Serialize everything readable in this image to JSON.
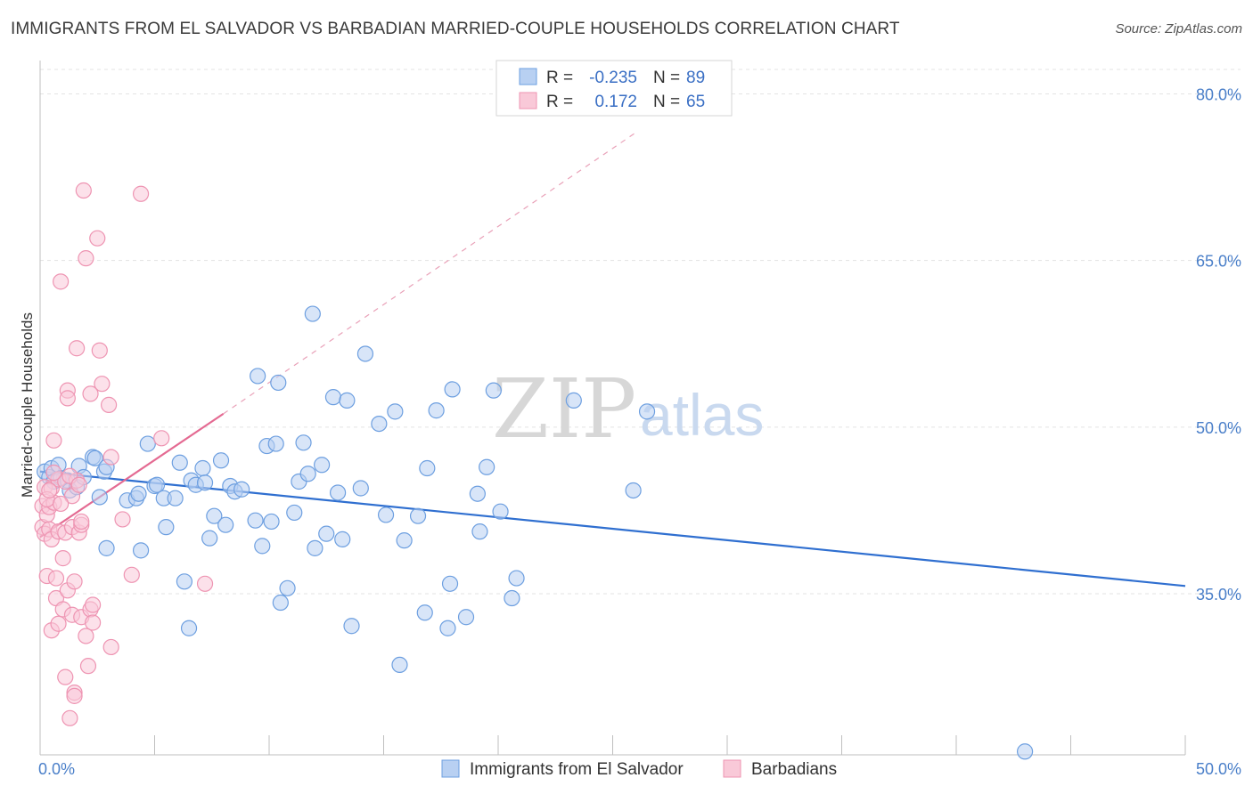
{
  "header": {
    "title": "IMMIGRANTS FROM EL SALVADOR VS BARBADIAN MARRIED-COUPLE HOUSEHOLDS CORRELATION CHART",
    "source": "Source: ZipAtlas.com"
  },
  "watermark": {
    "zip": "ZIP",
    "atlas": "atlas"
  },
  "chart_data": {
    "type": "scatter",
    "title": "IMMIGRANTS FROM EL SALVADOR VS BARBADIAN MARRIED-COUPLE HOUSEHOLDS CORRELATION CHART",
    "xlabel": "",
    "ylabel": "Married-couple Households",
    "xlim": [
      0,
      50
    ],
    "ylim": [
      20.5,
      83
    ],
    "x_tick_labels": [
      {
        "value": 0,
        "label": "0.0%"
      },
      {
        "value": 50,
        "label": "50.0%"
      }
    ],
    "y_tick_labels": [
      {
        "value": 80,
        "label": "80.0%"
      },
      {
        "value": 65,
        "label": "65.0%"
      },
      {
        "value": 50,
        "label": "50.0%"
      },
      {
        "value": 35,
        "label": "35.0%"
      }
    ],
    "grid": true,
    "legend_position": "bottom",
    "stats_box": [
      {
        "r_label": "R =",
        "r": "-0.235",
        "n_label": "N =",
        "n": "89"
      },
      {
        "r_label": "R =",
        "r": "0.172",
        "n_label": "N =",
        "n": "65"
      }
    ],
    "series": [
      {
        "name": "Immigrants from El Salvador",
        "color": "#6d9fe0",
        "fill": "#b8d0f2",
        "trend": {
          "x": [
            0,
            50
          ],
          "y": [
            46.0,
            35.7
          ],
          "color": "#2f6fd0",
          "style": "solid"
        },
        "points": [
          [
            0.2,
            46.0
          ],
          [
            0.4,
            45.5
          ],
          [
            0.5,
            46.3
          ],
          [
            0.6,
            45.1
          ],
          [
            0.8,
            46.6
          ],
          [
            0.9,
            45.4
          ],
          [
            1.2,
            45.2
          ],
          [
            1.3,
            44.3
          ],
          [
            1.6,
            44.6
          ],
          [
            1.7,
            46.5
          ],
          [
            1.9,
            45.5
          ],
          [
            2.3,
            47.3
          ],
          [
            2.4,
            47.2
          ],
          [
            2.8,
            46.0
          ],
          [
            2.9,
            46.4
          ],
          [
            2.6,
            43.7
          ],
          [
            2.9,
            39.1
          ],
          [
            3.8,
            43.4
          ],
          [
            4.2,
            43.6
          ],
          [
            4.4,
            38.9
          ],
          [
            4.3,
            44.0
          ],
          [
            4.7,
            48.5
          ],
          [
            5.0,
            44.7
          ],
          [
            5.1,
            44.8
          ],
          [
            5.4,
            43.6
          ],
          [
            5.5,
            41.0
          ],
          [
            5.9,
            43.6
          ],
          [
            6.1,
            46.8
          ],
          [
            6.3,
            36.1
          ],
          [
            6.5,
            31.9
          ],
          [
            6.6,
            45.2
          ],
          [
            6.8,
            44.8
          ],
          [
            7.1,
            46.3
          ],
          [
            7.2,
            45.0
          ],
          [
            7.4,
            40.0
          ],
          [
            7.6,
            42.0
          ],
          [
            7.9,
            47.0
          ],
          [
            8.1,
            41.2
          ],
          [
            8.3,
            44.7
          ],
          [
            8.5,
            44.2
          ],
          [
            8.8,
            44.4
          ],
          [
            9.4,
            41.6
          ],
          [
            9.5,
            54.6
          ],
          [
            9.7,
            39.3
          ],
          [
            9.9,
            48.3
          ],
          [
            10.1,
            41.5
          ],
          [
            10.3,
            48.5
          ],
          [
            10.4,
            54.0
          ],
          [
            10.5,
            34.2
          ],
          [
            10.8,
            35.5
          ],
          [
            11.1,
            42.3
          ],
          [
            11.3,
            45.1
          ],
          [
            11.5,
            48.6
          ],
          [
            11.7,
            45.8
          ],
          [
            11.9,
            60.2
          ],
          [
            12.0,
            39.1
          ],
          [
            12.3,
            46.6
          ],
          [
            12.5,
            40.4
          ],
          [
            12.8,
            52.7
          ],
          [
            13.0,
            44.1
          ],
          [
            13.2,
            39.9
          ],
          [
            13.4,
            52.4
          ],
          [
            13.6,
            32.1
          ],
          [
            14.0,
            44.5
          ],
          [
            14.2,
            56.6
          ],
          [
            14.8,
            50.3
          ],
          [
            15.1,
            42.1
          ],
          [
            15.5,
            51.4
          ],
          [
            15.7,
            28.6
          ],
          [
            15.9,
            39.8
          ],
          [
            16.5,
            42.0
          ],
          [
            16.8,
            33.3
          ],
          [
            16.9,
            46.3
          ],
          [
            17.3,
            51.5
          ],
          [
            17.8,
            31.9
          ],
          [
            17.9,
            35.9
          ],
          [
            18.0,
            53.4
          ],
          [
            18.6,
            32.9
          ],
          [
            19.1,
            44.0
          ],
          [
            19.2,
            40.6
          ],
          [
            19.5,
            46.4
          ],
          [
            19.8,
            53.3
          ],
          [
            20.1,
            42.4
          ],
          [
            20.6,
            34.6
          ],
          [
            20.8,
            36.4
          ],
          [
            23.3,
            52.4
          ],
          [
            25.9,
            44.3
          ],
          [
            26.5,
            51.4
          ],
          [
            43.0,
            20.8
          ]
        ]
      },
      {
        "name": "Barbadians",
        "color": "#ee94b2",
        "fill": "#f9c9d8",
        "trend": {
          "x": [
            0,
            8.0
          ],
          "y": [
            40.1,
            51.2
          ],
          "color": "#e46a92",
          "style": "solid"
        },
        "trend_extended": {
          "x": [
            8.0,
            26.0
          ],
          "y": [
            51.2,
            76.5
          ],
          "color": "#e9a1b8",
          "style": "dashed"
        },
        "points": [
          [
            0.1,
            42.9
          ],
          [
            0.1,
            41.0
          ],
          [
            0.2,
            44.6
          ],
          [
            0.2,
            40.4
          ],
          [
            0.3,
            42.1
          ],
          [
            0.3,
            36.6
          ],
          [
            0.4,
            42.8
          ],
          [
            0.4,
            40.8
          ],
          [
            0.5,
            44.5
          ],
          [
            0.5,
            39.9
          ],
          [
            0.5,
            31.7
          ],
          [
            0.6,
            48.8
          ],
          [
            0.6,
            43.2
          ],
          [
            0.7,
            36.4
          ],
          [
            0.7,
            34.6
          ],
          [
            0.8,
            45.3
          ],
          [
            0.8,
            40.6
          ],
          [
            0.8,
            32.3
          ],
          [
            0.9,
            63.1
          ],
          [
            1.0,
            38.2
          ],
          [
            1.0,
            33.6
          ],
          [
            1.1,
            45.1
          ],
          [
            1.1,
            40.5
          ],
          [
            1.1,
            27.5
          ],
          [
            1.2,
            53.3
          ],
          [
            1.2,
            52.6
          ],
          [
            1.2,
            35.3
          ],
          [
            1.3,
            23.8
          ],
          [
            1.4,
            43.8
          ],
          [
            1.4,
            41.0
          ],
          [
            1.4,
            33.1
          ],
          [
            1.5,
            36.1
          ],
          [
            1.5,
            26.1
          ],
          [
            1.5,
            25.8
          ],
          [
            1.6,
            57.1
          ],
          [
            1.6,
            45.2
          ],
          [
            1.7,
            40.5
          ],
          [
            1.8,
            41.2
          ],
          [
            1.8,
            41.5
          ],
          [
            1.8,
            32.9
          ],
          [
            1.9,
            71.3
          ],
          [
            2.0,
            65.2
          ],
          [
            2.0,
            31.2
          ],
          [
            2.1,
            28.5
          ],
          [
            2.2,
            53.0
          ],
          [
            2.2,
            33.6
          ],
          [
            2.3,
            34.0
          ],
          [
            2.3,
            32.4
          ],
          [
            2.5,
            67.0
          ],
          [
            2.6,
            56.9
          ],
          [
            2.7,
            53.9
          ],
          [
            3.0,
            52.0
          ],
          [
            3.1,
            47.3
          ],
          [
            3.1,
            30.2
          ],
          [
            3.6,
            41.7
          ],
          [
            4.0,
            36.7
          ],
          [
            4.4,
            71.0
          ],
          [
            5.3,
            49.0
          ],
          [
            7.2,
            35.9
          ],
          [
            0.3,
            43.5
          ],
          [
            0.6,
            45.9
          ],
          [
            0.9,
            43.1
          ],
          [
            1.3,
            45.6
          ],
          [
            1.7,
            44.8
          ],
          [
            0.4,
            44.3
          ]
        ]
      }
    ]
  }
}
